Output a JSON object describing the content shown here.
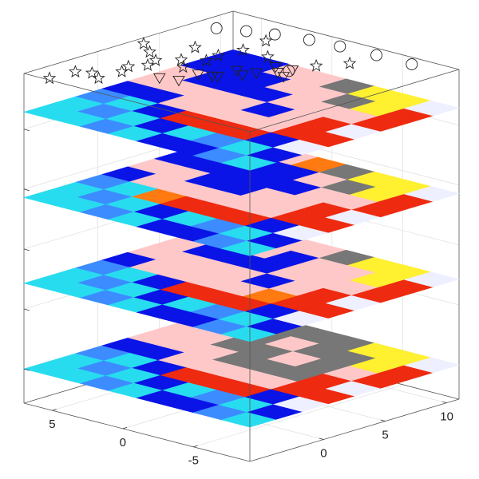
{
  "chart_data": {
    "type": "layer-stack",
    "xlim": [
      -9,
      7
    ],
    "xticks": [
      -5,
      0,
      5
    ],
    "ylim": [
      -6,
      11
    ],
    "yticks": [
      0,
      5,
      10
    ],
    "zlim": [
      0,
      3.85
    ],
    "zticks": [
      0.4,
      1.1,
      1.8,
      2.5,
      3.2
    ],
    "grid": true,
    "palette": [
      "#0a14e6",
      "#28dcef",
      "#3c8cff",
      "#ffc8c8",
      "#ee2a10",
      "#ff7a10",
      "#fff030",
      "#777777",
      "#eef0ff"
    ],
    "layers": [
      {
        "z": 0.4,
        "cells": [
          [
            1,
            1,
            2,
            0,
            3,
            3,
            0,
            3
          ],
          [
            1,
            2,
            1,
            0,
            3,
            3,
            3,
            3
          ],
          [
            2,
            1,
            0,
            3,
            3,
            7,
            7,
            7
          ],
          [
            1,
            0,
            4,
            3,
            7,
            7,
            3,
            7
          ],
          [
            0,
            1,
            4,
            3,
            7,
            3,
            7,
            7
          ],
          [
            0,
            2,
            4,
            3,
            7,
            7,
            7,
            6
          ],
          [
            2,
            1,
            0,
            4,
            4,
            3,
            6,
            6
          ],
          [
            1,
            0,
            8,
            4,
            8,
            4,
            4,
            8
          ]
        ]
      },
      {
        "z": 1.4,
        "cells": [
          [
            1,
            1,
            2,
            0,
            3,
            3,
            0,
            0
          ],
          [
            1,
            2,
            1,
            3,
            3,
            0,
            0,
            3
          ],
          [
            2,
            1,
            0,
            3,
            3,
            0,
            3,
            3
          ],
          [
            1,
            0,
            4,
            3,
            3,
            0,
            0,
            3
          ],
          [
            0,
            1,
            4,
            3,
            0,
            3,
            3,
            7
          ],
          [
            0,
            2,
            4,
            5,
            3,
            3,
            3,
            6
          ],
          [
            2,
            1,
            0,
            4,
            4,
            3,
            6,
            6
          ],
          [
            1,
            0,
            8,
            4,
            8,
            4,
            4,
            8
          ]
        ]
      },
      {
        "z": 2.4,
        "cells": [
          [
            1,
            1,
            2,
            0,
            3,
            0,
            3,
            3
          ],
          [
            1,
            2,
            1,
            3,
            3,
            0,
            0,
            3
          ],
          [
            2,
            1,
            5,
            3,
            0,
            0,
            0,
            3
          ],
          [
            1,
            0,
            4,
            3,
            0,
            0,
            0,
            5
          ],
          [
            0,
            1,
            4,
            3,
            3,
            0,
            3,
            7
          ],
          [
            0,
            2,
            4,
            3,
            3,
            3,
            7,
            6
          ],
          [
            2,
            1,
            0,
            4,
            4,
            3,
            6,
            6
          ],
          [
            1,
            0,
            8,
            4,
            8,
            4,
            4,
            8
          ]
        ]
      },
      {
        "z": 3.4,
        "cells": [
          [
            1,
            1,
            2,
            0,
            3,
            3,
            0,
            0
          ],
          [
            1,
            2,
            1,
            0,
            3,
            0,
            0,
            0
          ],
          [
            2,
            1,
            0,
            3,
            3,
            0,
            0,
            3
          ],
          [
            1,
            0,
            4,
            3,
            3,
            0,
            3,
            3
          ],
          [
            0,
            1,
            4,
            3,
            0,
            3,
            3,
            7
          ],
          [
            0,
            2,
            4,
            3,
            3,
            3,
            7,
            6
          ],
          [
            2,
            1,
            0,
            4,
            4,
            3,
            6,
            6
          ],
          [
            1,
            0,
            8,
            4,
            8,
            4,
            4,
            8
          ]
        ]
      }
    ],
    "markers": [
      {
        "symbol": "star",
        "x": [
          6.5,
          5.8,
          5.2,
          4.6,
          3.9,
          6.1,
          5.0,
          4.2,
          3.4,
          2.8,
          5.5,
          4.4,
          3.0,
          2.2,
          1.5,
          6.8,
          4.9,
          2.5,
          -1.5,
          -3.0
        ],
        "y": [
          -4.5,
          -3.2,
          -2.0,
          -0.8,
          0.5,
          -1.5,
          0.2,
          1.5,
          2.8,
          4.0,
          2.5,
          3.8,
          5.2,
          6.3,
          7.5,
          3.5,
          5.5,
          8.5,
          8.0,
          9.0
        ],
        "z": [
          3.75,
          3.8,
          3.7,
          3.75,
          3.8,
          3.7,
          3.75,
          3.8,
          3.7,
          3.75,
          3.8,
          3.7,
          3.75,
          3.8,
          3.7,
          3.8,
          3.75,
          3.8,
          3.7,
          3.75
        ]
      },
      {
        "symbol": "circle",
        "x": [
          6.0,
          4.5,
          3.0,
          1.0,
          -1.0,
          -3.5,
          -6.0,
          0.0
        ],
        "y": [
          8.5,
          9.2,
          9.8,
          10.3,
          10.5,
          10.6,
          10.6,
          7.5
        ],
        "z": [
          3.8,
          3.8,
          3.8,
          3.8,
          3.8,
          3.8,
          3.8,
          3.6
        ]
      },
      {
        "symbol": "triangle",
        "x": [
          3.5,
          3.0,
          2.5,
          2.0,
          1.5,
          1.0,
          0.5,
          0.0,
          2.8,
          1.8,
          0.8,
          -0.5
        ],
        "y": [
          1.0,
          2.0,
          3.0,
          4.0,
          5.0,
          6.0,
          7.0,
          7.8,
          4.5,
          5.8,
          7.5,
          6.5
        ],
        "z": [
          3.65,
          3.6,
          3.65,
          3.6,
          3.65,
          3.6,
          3.65,
          3.6,
          3.55,
          3.55,
          3.55,
          3.6
        ]
      }
    ]
  }
}
